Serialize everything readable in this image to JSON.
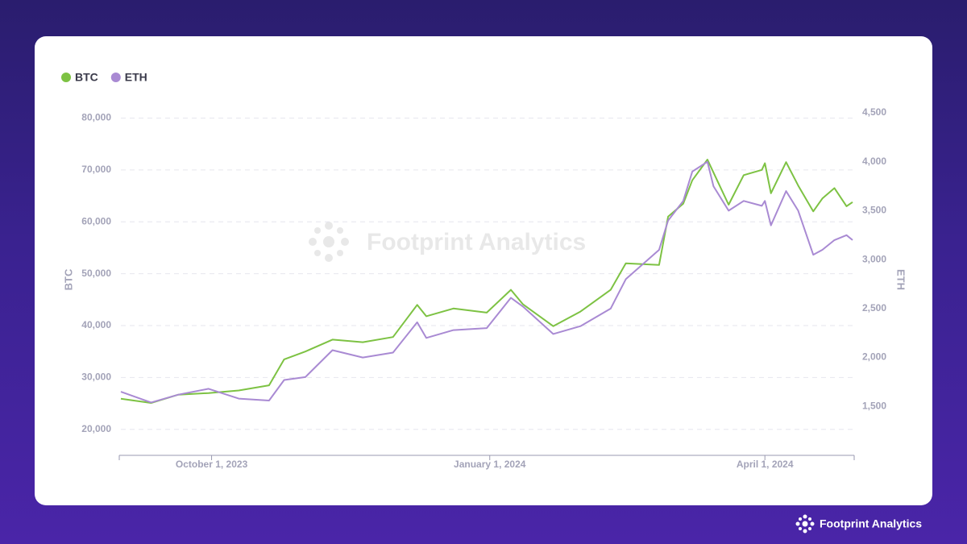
{
  "chart_data": {
    "type": "line",
    "x": [
      "2023-09-01",
      "2023-09-11",
      "2023-09-20",
      "2023-09-30",
      "2023-10-10",
      "2023-10-20",
      "2023-10-25",
      "2023-11-01",
      "2023-11-10",
      "2023-11-20",
      "2023-11-30",
      "2023-12-08",
      "2023-12-11",
      "2023-12-20",
      "2023-12-31",
      "2024-01-08",
      "2024-01-12",
      "2024-01-22",
      "2024-01-31",
      "2024-02-10",
      "2024-02-15",
      "2024-02-26",
      "2024-02-29",
      "2024-03-05",
      "2024-03-08",
      "2024-03-13",
      "2024-03-15",
      "2024-03-20",
      "2024-03-25",
      "2024-03-31",
      "2024-04-01",
      "2024-04-03",
      "2024-04-08",
      "2024-04-12",
      "2024-04-17",
      "2024-04-20",
      "2024-04-24",
      "2024-04-28",
      "2024-04-30"
    ],
    "series": [
      {
        "name": "BTC",
        "color": "#7dc243",
        "values": [
          25900,
          25100,
          26700,
          27000,
          27500,
          28500,
          33500,
          35000,
          37300,
          36800,
          37800,
          44000,
          41800,
          43300,
          42500,
          46900,
          44100,
          39900,
          42700,
          46900,
          52000,
          51700,
          61000,
          63500,
          68000,
          72000,
          69500,
          63300,
          69000,
          70000,
          71300,
          65500,
          71500,
          67000,
          62000,
          64500,
          66500,
          63000,
          63800
        ]
      },
      {
        "name": "ETH",
        "color": "#a98ad3",
        "axis": "y2",
        "values": [
          1650,
          1540,
          1620,
          1680,
          1580,
          1560,
          1770,
          1800,
          2075,
          2000,
          2050,
          2360,
          2200,
          2280,
          2300,
          2610,
          2520,
          2240,
          2320,
          2500,
          2800,
          3100,
          3400,
          3600,
          3900,
          4000,
          3750,
          3500,
          3600,
          3550,
          3600,
          3350,
          3700,
          3500,
          3050,
          3100,
          3200,
          3250,
          3200
        ]
      }
    ],
    "xlim": [
      "2023-09-01",
      "2024-04-30"
    ],
    "xticks": [
      {
        "value": "2023-10-01",
        "label": "October 1, 2023"
      },
      {
        "value": "2024-01-01",
        "label": "January 1, 2024"
      },
      {
        "value": "2024-04-01",
        "label": "April 1, 2024"
      }
    ],
    "ylabel": "BTC",
    "y2label": "ETH",
    "ylim": [
      15000,
      81000
    ],
    "yticks": [
      {
        "value": 20000,
        "label": "20,000"
      },
      {
        "value": 30000,
        "label": "30,000"
      },
      {
        "value": 40000,
        "label": "40,000"
      },
      {
        "value": 50000,
        "label": "50,000"
      },
      {
        "value": 60000,
        "label": "60,000"
      },
      {
        "value": 70000,
        "label": "70,000"
      },
      {
        "value": 80000,
        "label": "80,000"
      }
    ],
    "y2lim": [
      1000,
      4500
    ],
    "y2ticks": [
      {
        "value": 1500,
        "label": "1,500"
      },
      {
        "value": 2000,
        "label": "2,000"
      },
      {
        "value": 2500,
        "label": "2,500"
      },
      {
        "value": 3000,
        "label": "3,000"
      },
      {
        "value": 3500,
        "label": "3,500"
      },
      {
        "value": 4000,
        "label": "4,000"
      },
      {
        "value": 4500,
        "label": "4,500"
      }
    ],
    "grid": true,
    "legend": "top-left",
    "watermark": "Footprint Analytics"
  },
  "brand": "Footprint Analytics"
}
